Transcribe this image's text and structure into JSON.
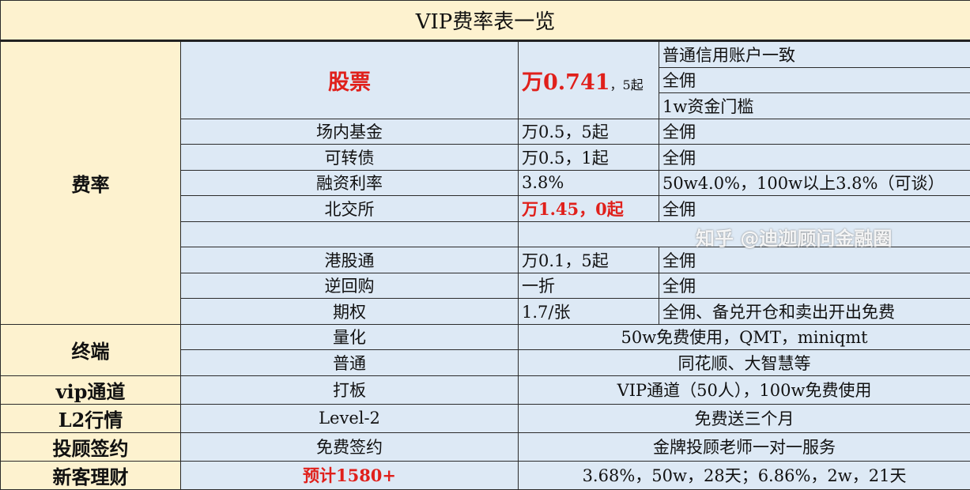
{
  "title": "VIP费率表一览",
  "sections": {
    "fee": "费率",
    "terminal": "终端",
    "vip": "vip通道",
    "l2": "L2行情",
    "advisor": "投顾签约",
    "wealth": "新客理财"
  },
  "stock": {
    "name": "股票",
    "rate_main": "万0.741",
    "rate_suffix": "，5起",
    "notes": [
      "普通信用账户一致",
      "全佣",
      "1w资金门槛"
    ]
  },
  "fee_rows": [
    {
      "name": "场内基金",
      "rate": "万0.5，5起",
      "note": "全佣"
    },
    {
      "name": "可转债",
      "rate": "万0.5，1起",
      "note": "全佣"
    },
    {
      "name": "融资利率",
      "rate": "3.8%",
      "note": "50w4.0%，100w以上3.8%（可谈）"
    },
    {
      "name": "北交所",
      "rate": "万1.45，0起",
      "note": "全佣"
    },
    {
      "name": "",
      "rate": "",
      "note": ""
    },
    {
      "name": "港股通",
      "rate": "万0.1，5起",
      "note": "全佣"
    },
    {
      "name": "逆回购",
      "rate": "一折",
      "note": "全佣"
    },
    {
      "name": "期权",
      "rate": "1.7/张",
      "note": "全佣、备兑开仓和卖出开出免费"
    }
  ],
  "terminal_rows": [
    {
      "name": "量化",
      "value": "50w免费使用，QMT，miniqmt"
    },
    {
      "name": "普通",
      "value": "同花顺、大智慧等"
    }
  ],
  "vip_row": {
    "name": "打板",
    "value": "VIP通道（50人），100w免费使用"
  },
  "l2_row": {
    "name": "Level-2",
    "value": "免费送三个月"
  },
  "advisor_row": {
    "name": "免费签约",
    "value": "金牌投顾老师一对一服务"
  },
  "wealth_row": {
    "name": "预计1580+",
    "value": "3.68%，50w，28天；6.86%，2w，21天"
  },
  "watermark": "知乎 @迪迦顾问金融圈",
  "colors": {
    "accent_red": "#e0201b",
    "category_bg": "#fdf2cf",
    "cell_bg": "#dde9f5"
  }
}
